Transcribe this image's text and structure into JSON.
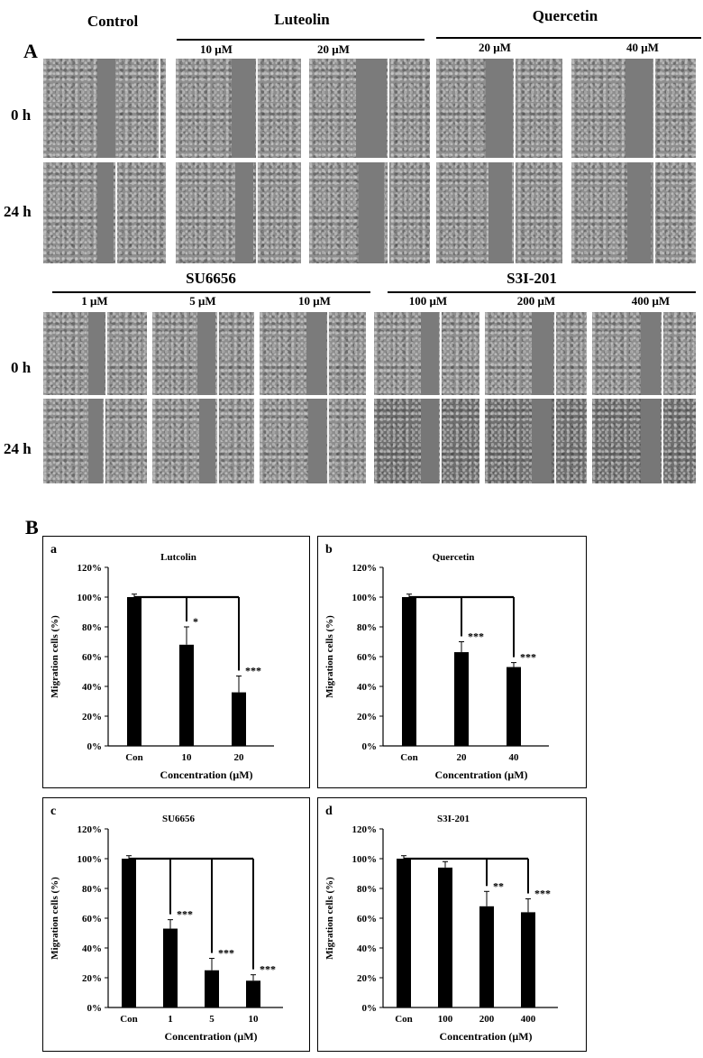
{
  "panelA": {
    "letter": "A",
    "top": {
      "control": "Control",
      "group1": {
        "name": "Luteolin",
        "concs": [
          "10 μM",
          "20 μM"
        ]
      },
      "group2": {
        "name": "Quercetin",
        "concs": [
          "20 μM",
          "40 μM"
        ]
      }
    },
    "bottom": {
      "group1": {
        "name": "SU6656",
        "concs": [
          "1 μM",
          "5 μM",
          "10 μM"
        ]
      },
      "group2": {
        "name": "S3I-201",
        "concs": [
          "100 μM",
          "200 μM",
          "400 μM"
        ]
      }
    },
    "rows": [
      "0 h",
      "24 h"
    ]
  },
  "panelB": {
    "letter": "B"
  },
  "chart_data": [
    {
      "type": "bar",
      "panel": "a",
      "title": "Lutcolin",
      "categories": [
        "Con",
        "10",
        "20"
      ],
      "values": [
        100,
        68,
        36
      ],
      "errors": [
        2,
        12,
        11
      ],
      "significance": [
        "",
        "*",
        "***"
      ],
      "xlabel": "Concentration (μM)",
      "ylabel": "Migration cells (%)",
      "yticks": [
        "0%",
        "20%",
        "40%",
        "60%",
        "80%",
        "100%",
        "120%"
      ],
      "ylim": [
        0,
        120
      ]
    },
    {
      "type": "bar",
      "panel": "b",
      "title": "Quercetin",
      "categories": [
        "Con",
        "20",
        "40"
      ],
      "values": [
        100,
        63,
        53
      ],
      "errors": [
        2,
        7,
        3
      ],
      "significance": [
        "",
        "***",
        "***"
      ],
      "xlabel": "Concentration (μM)",
      "ylabel": "Migration cells (%)",
      "yticks": [
        "0%",
        "20%",
        "40%",
        "60%",
        "80%",
        "100%",
        "120%"
      ],
      "ylim": [
        0,
        120
      ]
    },
    {
      "type": "bar",
      "panel": "c",
      "title": "SU6656",
      "categories": [
        "Con",
        "1",
        "5",
        "10"
      ],
      "values": [
        100,
        53,
        25,
        18
      ],
      "errors": [
        2,
        6,
        8,
        4
      ],
      "significance": [
        "",
        "***",
        "***",
        "***"
      ],
      "xlabel": "Concentration (μM)",
      "ylabel": "Migration cells (%)",
      "yticks": [
        "0%",
        "20%",
        "40%",
        "60%",
        "80%",
        "100%",
        "120%"
      ],
      "ylim": [
        0,
        120
      ]
    },
    {
      "type": "bar",
      "panel": "d",
      "title": "S3I-201",
      "categories": [
        "Con",
        "100",
        "200",
        "400"
      ],
      "values": [
        100,
        94,
        68,
        64
      ],
      "errors": [
        2,
        4,
        10,
        9
      ],
      "significance": [
        "",
        "",
        "**",
        "***"
      ],
      "xlabel": "Concentration (μM)",
      "ylabel": "Migration cells (%)",
      "yticks": [
        "0%",
        "20%",
        "40%",
        "60%",
        "80%",
        "100%",
        "120%"
      ],
      "ylim": [
        0,
        120
      ]
    }
  ]
}
